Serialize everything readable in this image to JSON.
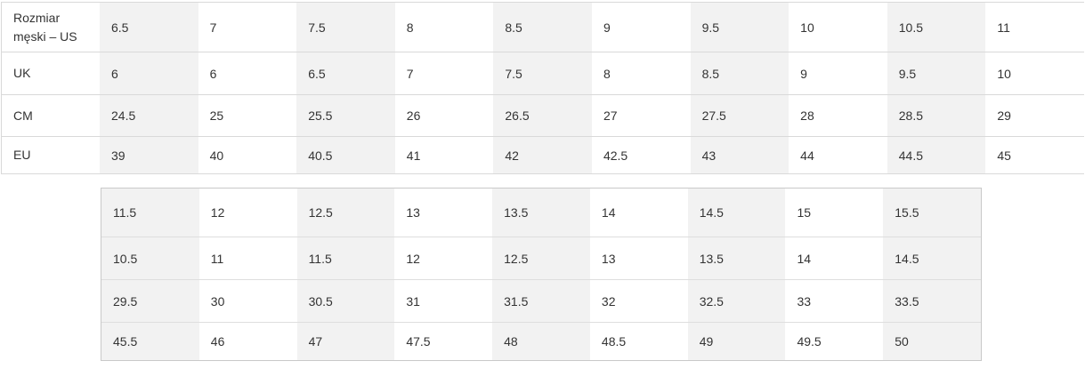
{
  "colors": {
    "background": "#ffffff",
    "cell_shaded": "#f2f2f2",
    "cell_plain": "#ffffff",
    "table_main_border": "#d9d9d9",
    "table_continued_border": "#c9c9c9",
    "text": "#333333"
  },
  "size_table_main": {
    "rows": [
      {
        "label": "Rozmiar męski – US",
        "values": [
          "6.5",
          "7",
          "7.5",
          "8",
          "8.5",
          "9",
          "9.5",
          "10",
          "10.5",
          "11"
        ]
      },
      {
        "label": "UK",
        "values": [
          "6",
          "6",
          "6.5",
          "7",
          "7.5",
          "8",
          "8.5",
          "9",
          "9.5",
          "10"
        ]
      },
      {
        "label": "CM",
        "values": [
          "24.5",
          "25",
          "25.5",
          "26",
          "26.5",
          "27",
          "27.5",
          "28",
          "28.5",
          "29"
        ]
      },
      {
        "label": "EU",
        "values": [
          "39",
          "40",
          "40.5",
          "41",
          "42",
          "42.5",
          "43",
          "44",
          "44.5",
          "45"
        ]
      }
    ]
  },
  "size_table_continued": {
    "rows": [
      {
        "values": [
          "11.5",
          "12",
          "12.5",
          "13",
          "13.5",
          "14",
          "14.5",
          "15",
          "15.5"
        ]
      },
      {
        "values": [
          "10.5",
          "11",
          "11.5",
          "12",
          "12.5",
          "13",
          "13.5",
          "14",
          "14.5"
        ]
      },
      {
        "values": [
          "29.5",
          "30",
          "30.5",
          "31",
          "31.5",
          "32",
          "32.5",
          "33",
          "33.5"
        ]
      },
      {
        "values": [
          "45.5",
          "46",
          "47",
          "47.5",
          "48",
          "48.5",
          "49",
          "49.5",
          "50"
        ]
      }
    ]
  }
}
